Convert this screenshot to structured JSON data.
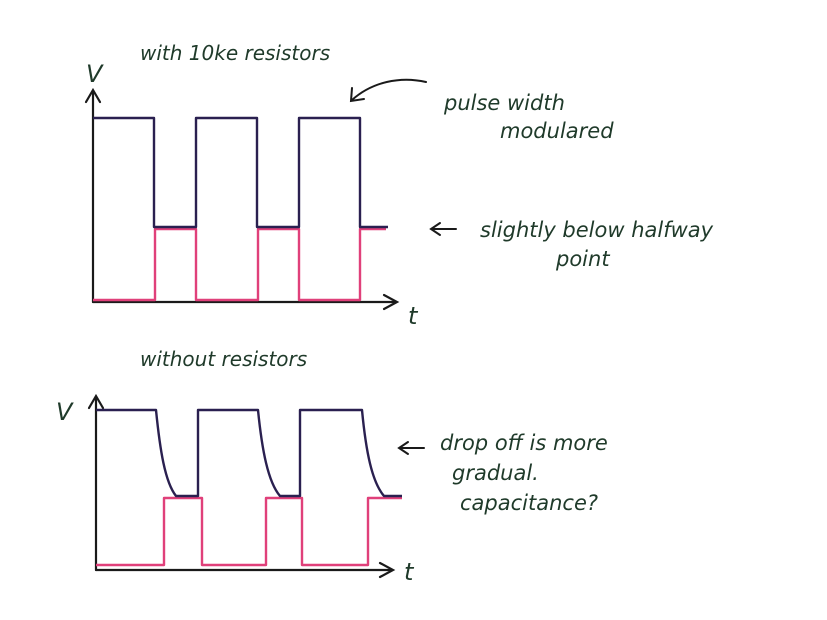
{
  "top_diagram": {
    "title": "with 10ke resistors",
    "y_label": "V",
    "x_label": "t",
    "note_lines": [
      "pulse width",
      "modulared"
    ],
    "note2_lines": [
      "slightly below halfway",
      "point"
    ]
  },
  "bottom_diagram": {
    "title": "without resistors",
    "y_label": "V",
    "x_label": "t",
    "note_lines": [
      "drop off is more",
      "gradual.",
      "capacitance?"
    ]
  },
  "colors": {
    "ink": "#1f3a2a",
    "navy_trace": "#2a2050",
    "pink_trace": "#e0407a"
  }
}
